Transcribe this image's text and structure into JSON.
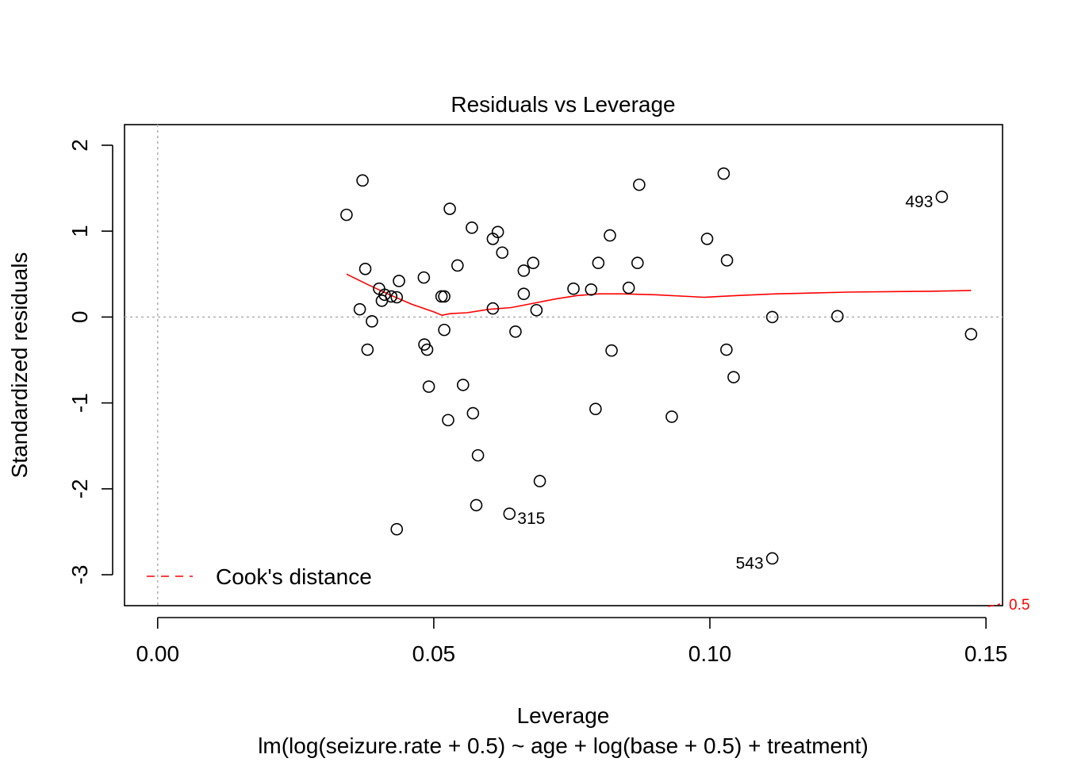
{
  "chart_data": {
    "type": "scatter",
    "title": "Residuals vs Leverage",
    "xlabel": "Leverage",
    "ylabel": "Standardized residuals",
    "subtitle": "lm(log(seizure.rate + 0.5) ~ age + log(base + 0.5) + treatment)",
    "xlim": [
      -0.006,
      0.153
    ],
    "ylim": [
      -3.36,
      2.24
    ],
    "x_ticks": [
      0.0,
      0.05,
      0.1,
      0.15
    ],
    "x_tick_labels": [
      "0.00",
      "0.05",
      "0.10",
      "0.15"
    ],
    "y_ticks": [
      -3,
      -2,
      -1,
      0,
      1,
      2
    ],
    "y_tick_labels": [
      "-3",
      "-2",
      "-1",
      "0",
      "1",
      "2"
    ],
    "grid": false,
    "reference_lines": {
      "horizontal_y": 0,
      "vertical_x": 0
    },
    "points": [
      {
        "x": 0.0342,
        "y": 1.19
      },
      {
        "x": 0.0371,
        "y": 1.59
      },
      {
        "x": 0.0366,
        "y": 0.09
      },
      {
        "x": 0.0376,
        "y": 0.56
      },
      {
        "x": 0.038,
        "y": -0.38
      },
      {
        "x": 0.0388,
        "y": -0.05
      },
      {
        "x": 0.0401,
        "y": 0.33
      },
      {
        "x": 0.0406,
        "y": 0.19
      },
      {
        "x": 0.0411,
        "y": 0.26
      },
      {
        "x": 0.0423,
        "y": 0.24
      },
      {
        "x": 0.0433,
        "y": 0.23
      },
      {
        "x": 0.0437,
        "y": 0.42
      },
      {
        "x": 0.0433,
        "y": -2.47
      },
      {
        "x": 0.0482,
        "y": 0.46
      },
      {
        "x": 0.0483,
        "y": -0.32
      },
      {
        "x": 0.0488,
        "y": -0.38
      },
      {
        "x": 0.0491,
        "y": -0.81
      },
      {
        "x": 0.0514,
        "y": 0.24
      },
      {
        "x": 0.0519,
        "y": 0.24
      },
      {
        "x": 0.0519,
        "y": -0.15
      },
      {
        "x": 0.0526,
        "y": -1.2
      },
      {
        "x": 0.0529,
        "y": 1.26
      },
      {
        "x": 0.0543,
        "y": 0.6
      },
      {
        "x": 0.0553,
        "y": -0.79
      },
      {
        "x": 0.0569,
        "y": 1.04
      },
      {
        "x": 0.0571,
        "y": -1.12
      },
      {
        "x": 0.0577,
        "y": -2.19
      },
      {
        "x": 0.058,
        "y": -1.61
      },
      {
        "x": 0.0607,
        "y": 0.91
      },
      {
        "x": 0.0607,
        "y": 0.1
      },
      {
        "x": 0.0616,
        "y": 0.99
      },
      {
        "x": 0.0624,
        "y": 0.75
      },
      {
        "x": 0.0637,
        "y": -2.29,
        "label": "315"
      },
      {
        "x": 0.0648,
        "y": -0.17
      },
      {
        "x": 0.0663,
        "y": 0.54
      },
      {
        "x": 0.0663,
        "y": 0.27
      },
      {
        "x": 0.068,
        "y": 0.63
      },
      {
        "x": 0.0686,
        "y": 0.08
      },
      {
        "x": 0.0692,
        "y": -1.91
      },
      {
        "x": 0.0753,
        "y": 0.33
      },
      {
        "x": 0.0785,
        "y": 0.32
      },
      {
        "x": 0.0793,
        "y": -1.07
      },
      {
        "x": 0.0798,
        "y": 0.63
      },
      {
        "x": 0.0819,
        "y": 0.95
      },
      {
        "x": 0.0822,
        "y": -0.39
      },
      {
        "x": 0.0853,
        "y": 0.34
      },
      {
        "x": 0.0869,
        "y": 0.63
      },
      {
        "x": 0.0872,
        "y": 1.54
      },
      {
        "x": 0.0931,
        "y": -1.16
      },
      {
        "x": 0.0995,
        "y": 0.91
      },
      {
        "x": 0.1025,
        "y": 1.67
      },
      {
        "x": 0.103,
        "y": -0.38
      },
      {
        "x": 0.1031,
        "y": 0.66
      },
      {
        "x": 0.1043,
        "y": -0.7
      },
      {
        "x": 0.1113,
        "y": 0.0
      },
      {
        "x": 0.1113,
        "y": -2.81,
        "label": "543"
      },
      {
        "x": 0.1231,
        "y": 0.01
      },
      {
        "x": 0.142,
        "y": 1.4,
        "label": "493"
      },
      {
        "x": 0.1473,
        "y": -0.2
      }
    ],
    "smoother": {
      "color": "#ff0000",
      "x": [
        0.0342,
        0.038,
        0.042,
        0.046,
        0.05,
        0.0515,
        0.053,
        0.056,
        0.06,
        0.064,
        0.068,
        0.072,
        0.076,
        0.08,
        0.084,
        0.09,
        0.099,
        0.105,
        0.112,
        0.125,
        0.14,
        0.1473
      ],
      "y": [
        0.5,
        0.38,
        0.26,
        0.15,
        0.06,
        0.02,
        0.04,
        0.05,
        0.09,
        0.11,
        0.16,
        0.21,
        0.25,
        0.27,
        0.27,
        0.26,
        0.23,
        0.25,
        0.27,
        0.29,
        0.3,
        0.31
      ]
    },
    "cooks_distance": {
      "legend_label": "Cook's distance",
      "legend_position": "bottom-left",
      "line_color": "#ff0000",
      "contour_label": "0.5"
    }
  }
}
